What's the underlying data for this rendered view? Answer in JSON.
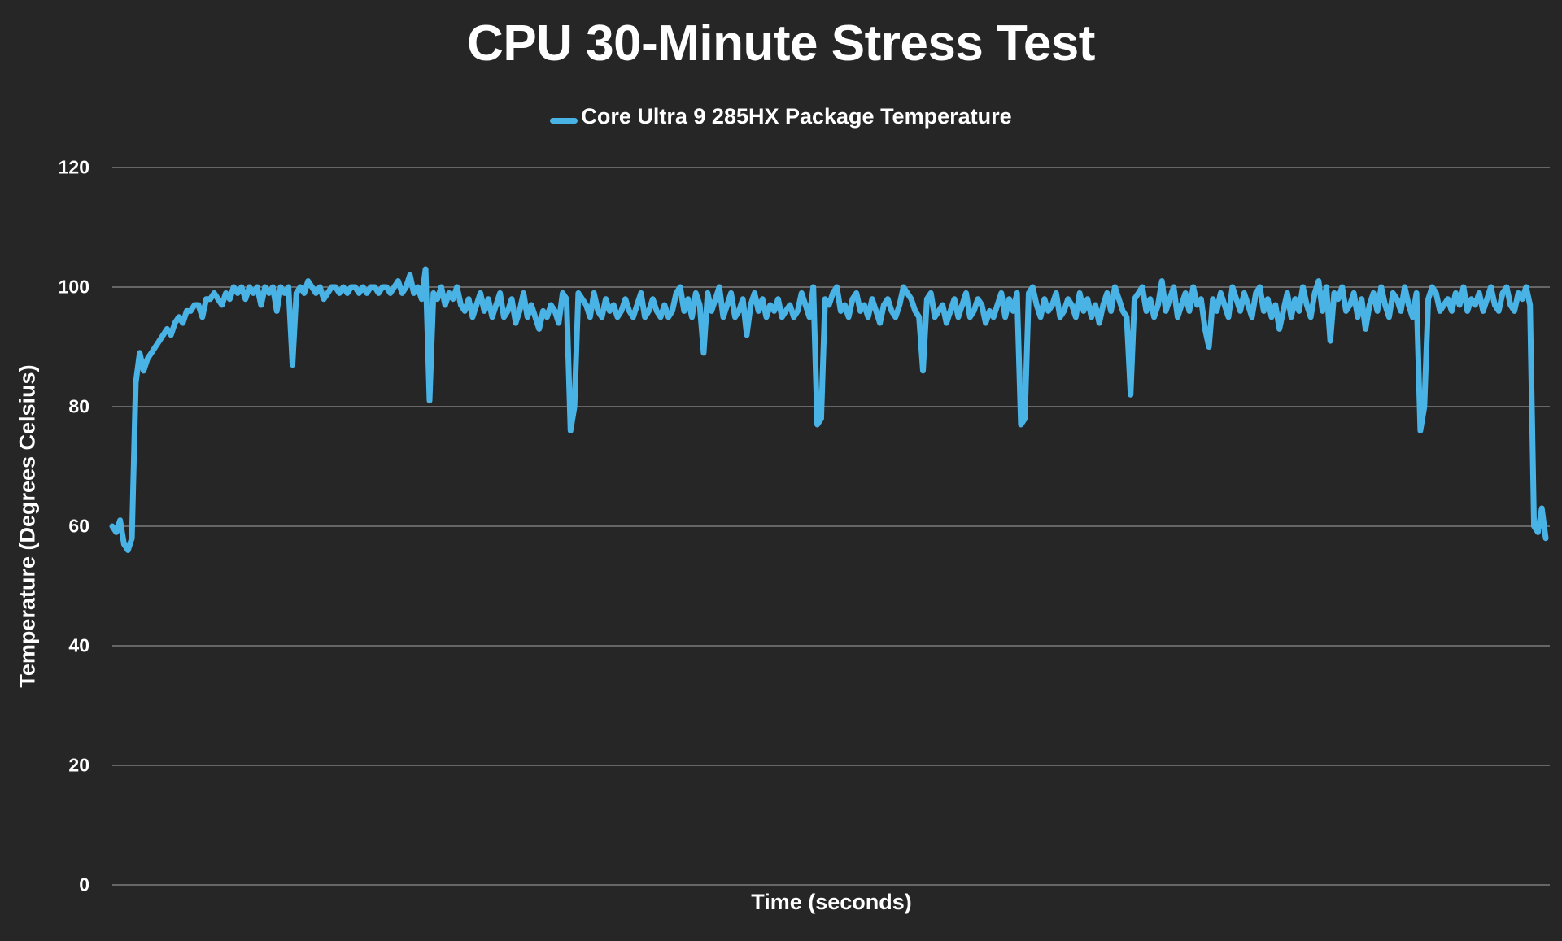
{
  "chart": {
    "title": "CPU 30-Minute Stress Test",
    "legend_label": "Core Ultra 9 285HX Package Temperature",
    "xlabel": "Time (seconds)",
    "ylabel": "Temperature (Degrees Celsius)",
    "y_ticks": [
      "0",
      "20",
      "40",
      "60",
      "80",
      "100",
      "120"
    ],
    "colors": {
      "background": "#262626",
      "line": "#4AB3E6",
      "grid": "#8c8c8c",
      "text": "#ffffff"
    }
  },
  "chart_data": {
    "type": "line",
    "title": "CPU 30-Minute Stress Test",
    "xlabel": "Time (seconds)",
    "ylabel": "Temperature (Degrees Celsius)",
    "ylim": [
      0,
      120
    ],
    "y_ticks": [
      0,
      20,
      40,
      60,
      80,
      100,
      120
    ],
    "x_ticks": [],
    "grid": true,
    "legend_position": "top",
    "series": [
      {
        "name": "Core Ultra 9 285HX Package Temperature",
        "color": "#4AB3E6",
        "note": "Approximate ~5-second resampling of a ~30-minute trace; x-axis has no tick labels, so x is sample index (0..359).",
        "values": [
          60,
          59,
          61,
          57,
          56,
          58,
          84,
          89,
          86,
          88,
          89,
          90,
          91,
          92,
          93,
          92,
          94,
          95,
          94,
          96,
          96,
          97,
          97,
          95,
          98,
          98,
          99,
          98,
          97,
          99,
          98,
          100,
          99,
          100,
          98,
          100,
          99,
          100,
          97,
          100,
          99,
          100,
          96,
          100,
          99,
          100,
          87,
          99,
          100,
          99,
          101,
          100,
          99,
          100,
          98,
          99,
          100,
          100,
          99,
          100,
          99,
          100,
          100,
          99,
          100,
          99,
          100,
          100,
          99,
          100,
          100,
          99,
          100,
          101,
          99,
          100,
          102,
          99,
          100,
          98,
          103,
          81,
          99,
          98,
          100,
          97,
          99,
          98,
          100,
          97,
          96,
          98,
          95,
          97,
          99,
          96,
          98,
          95,
          97,
          99,
          95,
          96,
          98,
          94,
          96,
          99,
          95,
          97,
          95,
          93,
          96,
          95,
          97,
          96,
          94,
          99,
          98,
          76,
          80,
          99,
          98,
          97,
          95,
          99,
          96,
          95,
          98,
          96,
          97,
          95,
          96,
          98,
          96,
          95,
          97,
          99,
          95,
          96,
          98,
          96,
          95,
          97,
          95,
          96,
          99,
          100,
          96,
          98,
          95,
          99,
          97,
          89,
          99,
          96,
          98,
          100,
          95,
          97,
          99,
          95,
          96,
          98,
          92,
          97,
          99,
          96,
          98,
          95,
          97,
          96,
          98,
          95,
          96,
          97,
          95,
          96,
          99,
          97,
          95,
          100,
          77,
          78,
          98,
          97,
          99,
          100,
          96,
          97,
          95,
          98,
          99,
          96,
          97,
          95,
          98,
          96,
          94,
          97,
          98,
          96,
          95,
          97,
          100,
          99,
          98,
          96,
          95,
          86,
          98,
          99,
          95,
          96,
          97,
          94,
          96,
          98,
          95,
          97,
          99,
          95,
          96,
          98,
          97,
          94,
          96,
          95,
          97,
          99,
          95,
          98,
          96,
          99,
          77,
          78,
          99,
          100,
          97,
          95,
          98,
          96,
          97,
          99,
          95,
          96,
          98,
          97,
          95,
          99,
          96,
          98,
          95,
          97,
          94,
          97,
          99,
          96,
          100,
          98,
          96,
          95,
          82,
          98,
          99,
          100,
          96,
          98,
          95,
          97,
          101,
          96,
          98,
          100,
          95,
          97,
          99,
          96,
          100,
          97,
          98,
          93,
          90,
          98,
          96,
          99,
          97,
          95,
          100,
          98,
          96,
          99,
          97,
          95,
          99,
          100,
          96,
          98,
          95,
          97,
          93,
          96,
          99,
          95,
          98,
          96,
          100,
          97,
          95,
          99,
          101,
          96,
          100,
          91,
          99,
          98,
          100,
          96,
          97,
          99,
          95,
          98,
          93,
          97,
          99,
          96,
          100,
          97,
          95,
          99,
          98,
          96,
          100,
          97,
          95,
          99,
          76,
          80,
          98,
          100,
          99,
          96,
          97,
          98,
          96,
          99,
          97,
          100,
          96,
          98,
          97,
          99,
          96,
          98,
          100,
          97,
          96,
          99,
          100,
          97,
          96,
          99,
          98,
          100,
          97,
          60,
          59,
          63,
          58
        ]
      }
    ]
  }
}
